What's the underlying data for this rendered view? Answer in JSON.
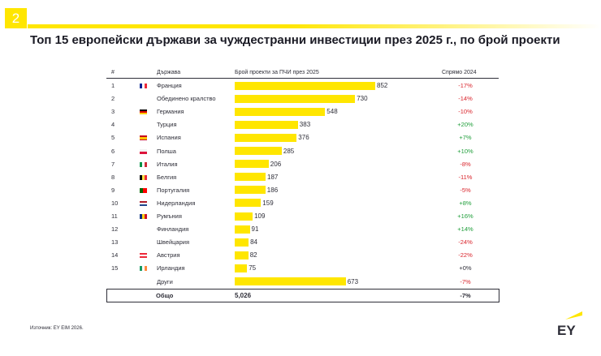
{
  "page_number": "2",
  "title": "Топ 15 европейски държави за чуждестранни инвестиции през 2025 г., по брой проекти",
  "header": {
    "rank": "#",
    "country": "Държава",
    "projects": "Брой проекти за ПЧИ през 2025",
    "change": "Спрямо 2024"
  },
  "rows": [
    {
      "rank": "1",
      "flag": "france-flag-icon",
      "country": "Франция",
      "change": "-17%",
      "dir": "neg"
    },
    {
      "rank": "2",
      "flag": "uk-flag-icon",
      "country": "Обединено кралство",
      "change": "-14%",
      "dir": "neg"
    },
    {
      "rank": "3",
      "flag": "germany-flag-icon",
      "country": "Германия",
      "change": "-10%",
      "dir": "neg"
    },
    {
      "rank": "4",
      "flag": "turkey-flag-icon",
      "country": "Турция",
      "change": "+20%",
      "dir": "pos"
    },
    {
      "rank": "5",
      "flag": "spain-flag-icon",
      "country": "Испания",
      "change": "+7%",
      "dir": "pos"
    },
    {
      "rank": "6",
      "flag": "poland-flag-icon",
      "country": "Полша",
      "change": "+10%",
      "dir": "pos"
    },
    {
      "rank": "7",
      "flag": "italy-flag-icon",
      "country": "Италия",
      "change": "-8%",
      "dir": "neg"
    },
    {
      "rank": "8",
      "flag": "belgium-flag-icon",
      "country": "Белгия",
      "change": "-11%",
      "dir": "neg"
    },
    {
      "rank": "9",
      "flag": "portugal-flag-icon",
      "country": "Португалия",
      "change": "-5%",
      "dir": "neg"
    },
    {
      "rank": "10",
      "flag": "netherlands-flag-icon",
      "country": "Нидерландия",
      "change": "+8%",
      "dir": "pos"
    },
    {
      "rank": "11",
      "flag": "romania-flag-icon",
      "country": "Румъния",
      "change": "+16%",
      "dir": "pos"
    },
    {
      "rank": "12",
      "flag": "finland-flag-icon",
      "country": "Финландия",
      "change": "+14%",
      "dir": "pos"
    },
    {
      "rank": "13",
      "flag": "switzerland-flag-icon",
      "country": "Швейцария",
      "change": "-24%",
      "dir": "neg"
    },
    {
      "rank": "14",
      "flag": "austria-flag-icon",
      "country": "Австрия",
      "change": "-22%",
      "dir": "neg"
    },
    {
      "rank": "15",
      "flag": "ireland-flag-icon",
      "country": "Ирландия",
      "change": "+0%",
      "dir": "zero"
    },
    {
      "rank": "",
      "flag": "",
      "country": "Други",
      "change": "-7%",
      "dir": "neg"
    }
  ],
  "total": {
    "label": "Общо",
    "value": "5,026",
    "change": "-7%"
  },
  "source": "Източник: EY EIM 2026.",
  "logo_text": "EY",
  "colors": {
    "accent": "#ffe600",
    "positive": "#1f9e3a",
    "negative": "#d9242b",
    "text": "#2e2e38"
  },
  "chart_data": {
    "type": "bar",
    "orientation": "horizontal",
    "title": "Топ 15 европейски държави за чуждестранни инвестиции през 2025 г., по брой проекти",
    "xlabel": "Брой проекти за ПЧИ през 2025",
    "categories": [
      "Франция",
      "Обединено кралство",
      "Германия",
      "Турция",
      "Испания",
      "Полша",
      "Италия",
      "Белгия",
      "Португалия",
      "Нидерландия",
      "Румъния",
      "Финландия",
      "Швейцария",
      "Австрия",
      "Ирландия",
      "Други"
    ],
    "values": [
      852,
      730,
      548,
      383,
      376,
      285,
      206,
      187,
      186,
      159,
      109,
      91,
      84,
      82,
      75,
      673
    ],
    "xlim": [
      0,
      852
    ],
    "grid": false,
    "legend": "none"
  }
}
